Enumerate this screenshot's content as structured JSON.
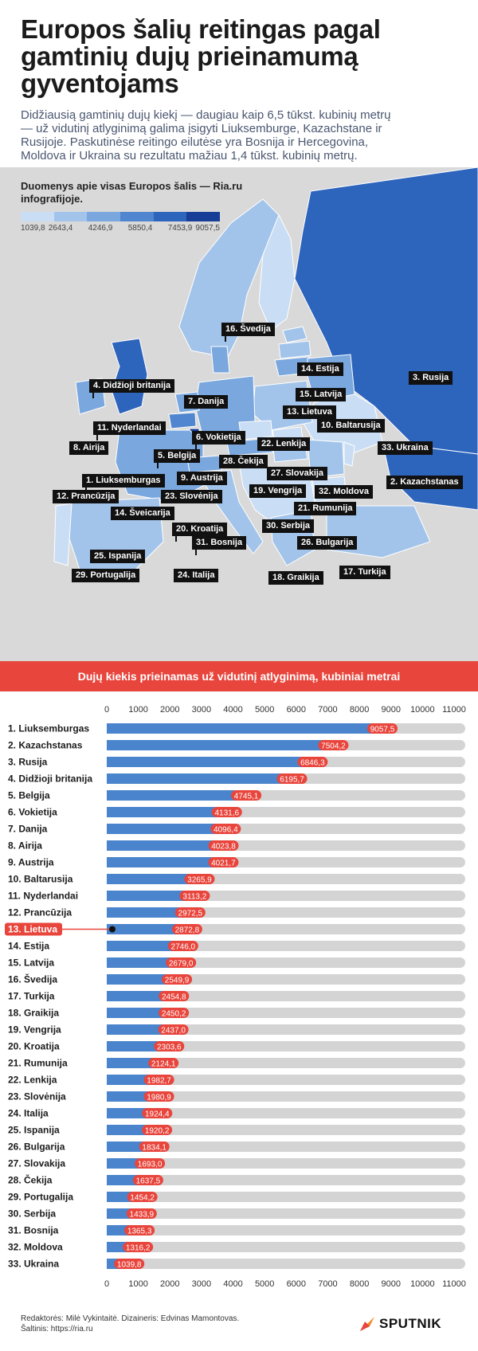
{
  "title": "Europos šalių reitingas pagal gamtinių dujų prieinamumą gyventojams",
  "subtitle": "Didžiausią gamtinių dujų kiekį — daugiau kaip 6,5 tūkst. kubinių metrų — už vidutinį atlyginimą galima įsigyti Liuksemburge, Kazachstane ir Rusijoje. Paskutinėse reitingo eilutėse yra Bosnija ir Hercegovina, Moldova ir Ukraina su rezultatu mažiau 1,4 tūkst. kubinių metrų.",
  "note": "Duomenys apie visas Europos šalis — Ria.ru infografijoje.",
  "legend": {
    "ticks": [
      "1039,8",
      "2643,4",
      "4246,9",
      "5850,4",
      "7453,9",
      "9057,5"
    ],
    "colors": [
      "#c9ddf4",
      "#a2c4ea",
      "#79a7de",
      "#4f86cf",
      "#2d64bc",
      "#163e96"
    ]
  },
  "map_labels": [
    {
      "name": "label-svedija",
      "text": "16. Švedija"
    },
    {
      "name": "label-estija",
      "text": "14. Estija"
    },
    {
      "name": "label-rusija",
      "text": "3. Rusija"
    },
    {
      "name": "label-didzioji-britanija",
      "text": "4. Didžioji britanija"
    },
    {
      "name": "label-danija",
      "text": "7. Danija"
    },
    {
      "name": "label-latvija",
      "text": "15. Latvija"
    },
    {
      "name": "label-lietuva",
      "text": "13. Lietuva"
    },
    {
      "name": "label-nyderlandai",
      "text": "11. Nyderlandai"
    },
    {
      "name": "label-baltarusija",
      "text": "10. Baltarusija"
    },
    {
      "name": "label-vokietija",
      "text": "6. Vokietija"
    },
    {
      "name": "label-airija",
      "text": "8. Airija"
    },
    {
      "name": "label-lenkija",
      "text": "22. Lenkija"
    },
    {
      "name": "label-ukraina",
      "text": "33. Ukraina"
    },
    {
      "name": "label-belgija",
      "text": "5. Belgija"
    },
    {
      "name": "label-cekija",
      "text": "28. Čekija"
    },
    {
      "name": "label-slovakija",
      "text": "27. Slovakija"
    },
    {
      "name": "label-liuksemburgas",
      "text": "1. Liuksemburgas"
    },
    {
      "name": "label-austrija",
      "text": "9. Austrija"
    },
    {
      "name": "label-kazachstanas",
      "text": "2. Kazachstanas"
    },
    {
      "name": "label-vengrija",
      "text": "19. Vengrija"
    },
    {
      "name": "label-moldova",
      "text": "32. Moldova"
    },
    {
      "name": "label-prancuzija",
      "text": "12. Prancūzija"
    },
    {
      "name": "label-slovenija",
      "text": "23. Slovėnija"
    },
    {
      "name": "label-rumunija",
      "text": "21. Rumunija"
    },
    {
      "name": "label-sveicarija",
      "text": "14. Šveicarija"
    },
    {
      "name": "label-kroatija",
      "text": "20. Kroatija"
    },
    {
      "name": "label-serbija",
      "text": "30. Serbija"
    },
    {
      "name": "label-bosnija",
      "text": "31. Bosnija"
    },
    {
      "name": "label-bulgarija",
      "text": "26. Bulgarija"
    },
    {
      "name": "label-ispanija",
      "text": "25. Ispanija"
    },
    {
      "name": "label-portugalija",
      "text": "29. Portugalija"
    },
    {
      "name": "label-italija",
      "text": "24. Italija"
    },
    {
      "name": "label-turkija",
      "text": "17. Turkija"
    },
    {
      "name": "label-graikija",
      "text": "18. Graikija"
    }
  ],
  "banner": "Dujų kiekis prieinamas už vidutinį atlyginimą, kubiniai metrai",
  "chart_data": {
    "type": "bar",
    "orientation": "horizontal",
    "title": "Dujų kiekis prieinamas už vidutinį atlyginimą, kubiniai metrai",
    "xlim": [
      0,
      11000
    ],
    "xticks": [
      "0",
      "1000",
      "2000",
      "3000",
      "4000",
      "5000",
      "6000",
      "7000",
      "8000",
      "9000",
      "10000",
      "11000"
    ],
    "grid": false,
    "highlight": "13. Lietuva",
    "bar_color": "#4a84cc",
    "track_color": "#d4d4d4",
    "label_color": "#e8453c",
    "categories": [
      "1. Liuksemburgas",
      "2. Kazachstanas",
      "3. Rusija",
      "4. Didžioji britanija",
      "5. Belgija",
      "6. Vokietija",
      "7. Danija",
      "8. Airija",
      "9. Austrija",
      "10. Baltarusija",
      "11. Nyderlandai",
      "12. Prancūzija",
      "13. Lietuva",
      "14. Estija",
      "15. Latvija",
      "16. Švedija",
      "17. Turkija",
      "18. Graikija",
      "19. Vengrija",
      "20. Kroatija",
      "21. Rumunija",
      "22. Lenkija",
      "23. Slovėnija",
      "24. Italija",
      "25. Ispanija",
      "26. Bulgarija",
      "27. Slovakija",
      "28. Čekija",
      "29. Portugalija",
      "30. Serbija",
      "31. Bosnija",
      "32. Moldova",
      "33. Ukraina"
    ],
    "values": [
      9057.5,
      7504.2,
      6846.3,
      6195.7,
      4745.1,
      4131.6,
      4096.4,
      4023.8,
      4021.7,
      3265.9,
      3113.2,
      2972.5,
      2872.8,
      2746.0,
      2679.0,
      2549.9,
      2454.8,
      2450.2,
      2437.0,
      2303.6,
      2124.1,
      1982.7,
      1980.9,
      1924.4,
      1920.2,
      1834.1,
      1693.0,
      1637.5,
      1454.2,
      1433.9,
      1365.3,
      1316.2,
      1039.8
    ],
    "value_labels": [
      "9057,5",
      "7504,2",
      "6846,3",
      "6195,7",
      "4745,1",
      "4131,6",
      "4096,4",
      "4023,8",
      "4021,7",
      "3265,9",
      "3113,2",
      "2972,5",
      "2872,8",
      "2746,0",
      "2679,0",
      "2549,9",
      "2454,8",
      "2450,2",
      "2437,0",
      "2303,6",
      "2124,1",
      "1982,7",
      "1980,9",
      "1924,4",
      "1920,2",
      "1834,1",
      "1693,0",
      "1637,5",
      "1454,2",
      "1433,9",
      "1365,3",
      "1316,2",
      "1039,8"
    ]
  },
  "footer": {
    "line1": "Redaktorės: Milė Vykintaitė. Dizaineris: Edvinas Mamontovas.",
    "line2": "Šaltinis: https://ria.ru"
  },
  "logo": "SPUTNIK"
}
